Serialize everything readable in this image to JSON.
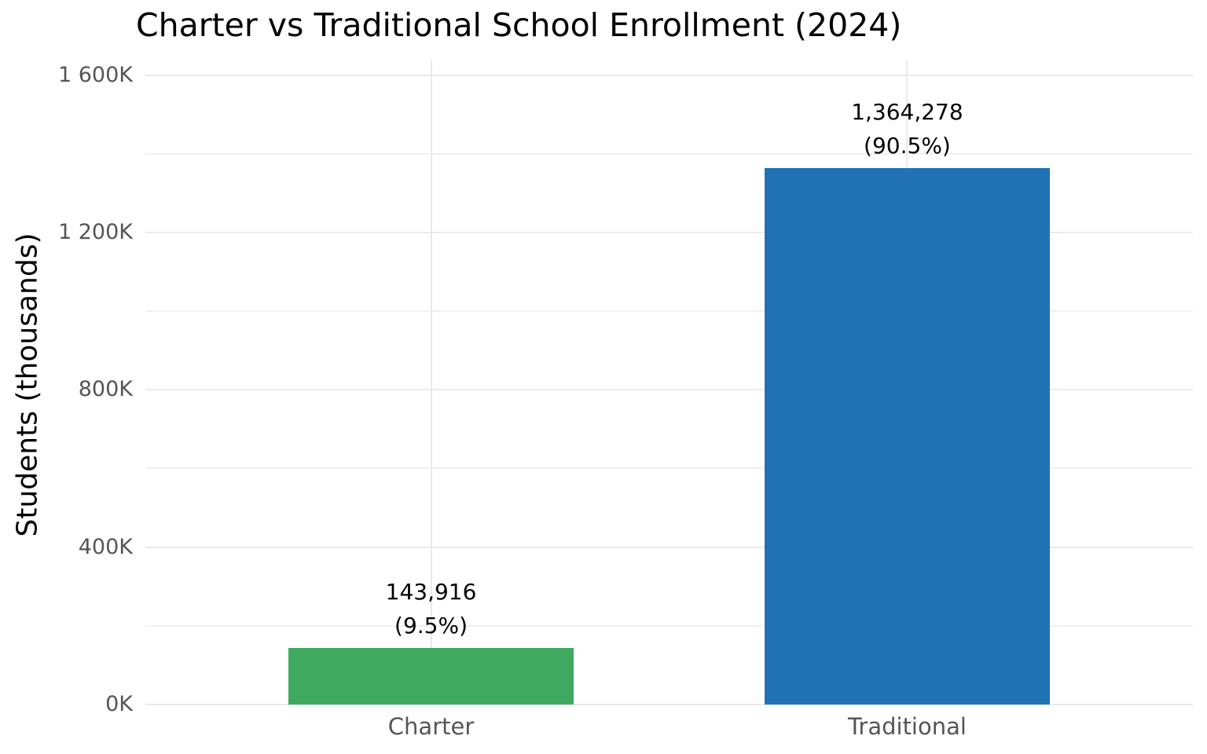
{
  "chart_data": {
    "type": "bar",
    "title": "Charter vs Traditional School Enrollment (2024)",
    "xlabel": "",
    "ylabel": "Students (thousands)",
    "categories": [
      "Charter",
      "Traditional"
    ],
    "values": [
      143916,
      1364278
    ],
    "value_labels": [
      "143,916",
      "1,364,278"
    ],
    "percent_labels": [
      "(9.5%)",
      "(90.5%)"
    ],
    "bar_colors": [
      "#3fa95f",
      "#2172b5"
    ],
    "ylim": [
      0,
      1637134
    ],
    "yticks": [
      {
        "value": 0,
        "label": "0K"
      },
      {
        "value": 400000,
        "label": "400K"
      },
      {
        "value": 800000,
        "label": "800K"
      },
      {
        "value": 1200000,
        "label": "1 200K"
      },
      {
        "value": 1600000,
        "label": "1 600K"
      }
    ],
    "major_grid_step": 400000,
    "minor_grid_step": 200000,
    "grid": true,
    "legend": "none",
    "colors": {
      "grid_major": "#eaeaea",
      "grid_minor": "#f0f0f0",
      "title_text": "#000000",
      "tick_text": "#555555",
      "annotation_text": "#000000",
      "background": "#ffffff"
    }
  }
}
